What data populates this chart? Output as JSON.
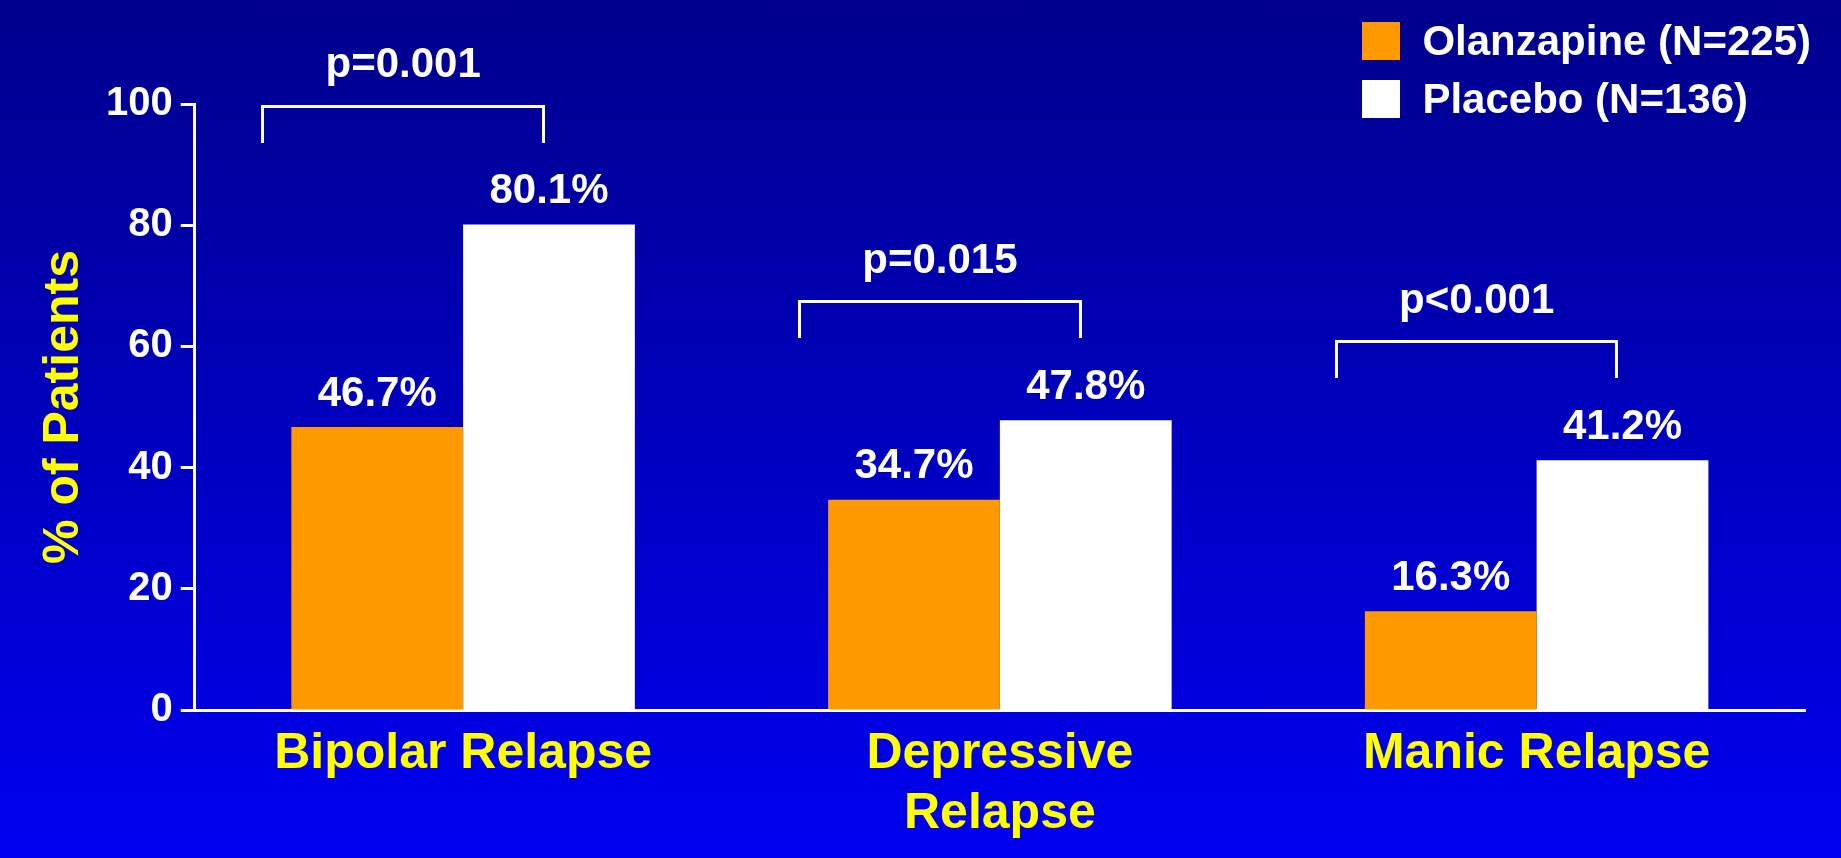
{
  "chart_data": {
    "type": "bar",
    "ylabel": "% of Patients",
    "categories": [
      "Bipolar Relapse",
      "Depressive Relapse",
      "Manic Relapse"
    ],
    "series": [
      {
        "name": "Olanzapine (N=225)",
        "color": "#ff9900",
        "values": [
          46.7,
          34.7,
          16.3
        ],
        "value_labels": [
          "46.7%",
          "34.7%",
          "16.3%"
        ]
      },
      {
        "name": "Placebo (N=136)",
        "color": "#ffffff",
        "values": [
          80.1,
          47.8,
          41.2
        ],
        "value_labels": [
          "80.1%",
          "47.8%",
          "41.2%"
        ]
      }
    ],
    "ylim": [
      0,
      100
    ],
    "yticks": [
      0,
      20,
      40,
      60,
      80,
      100
    ],
    "grid": false,
    "legend": "top right",
    "annotations": [
      "p=0.001",
      "p=0.015",
      "p<0.001"
    ]
  }
}
